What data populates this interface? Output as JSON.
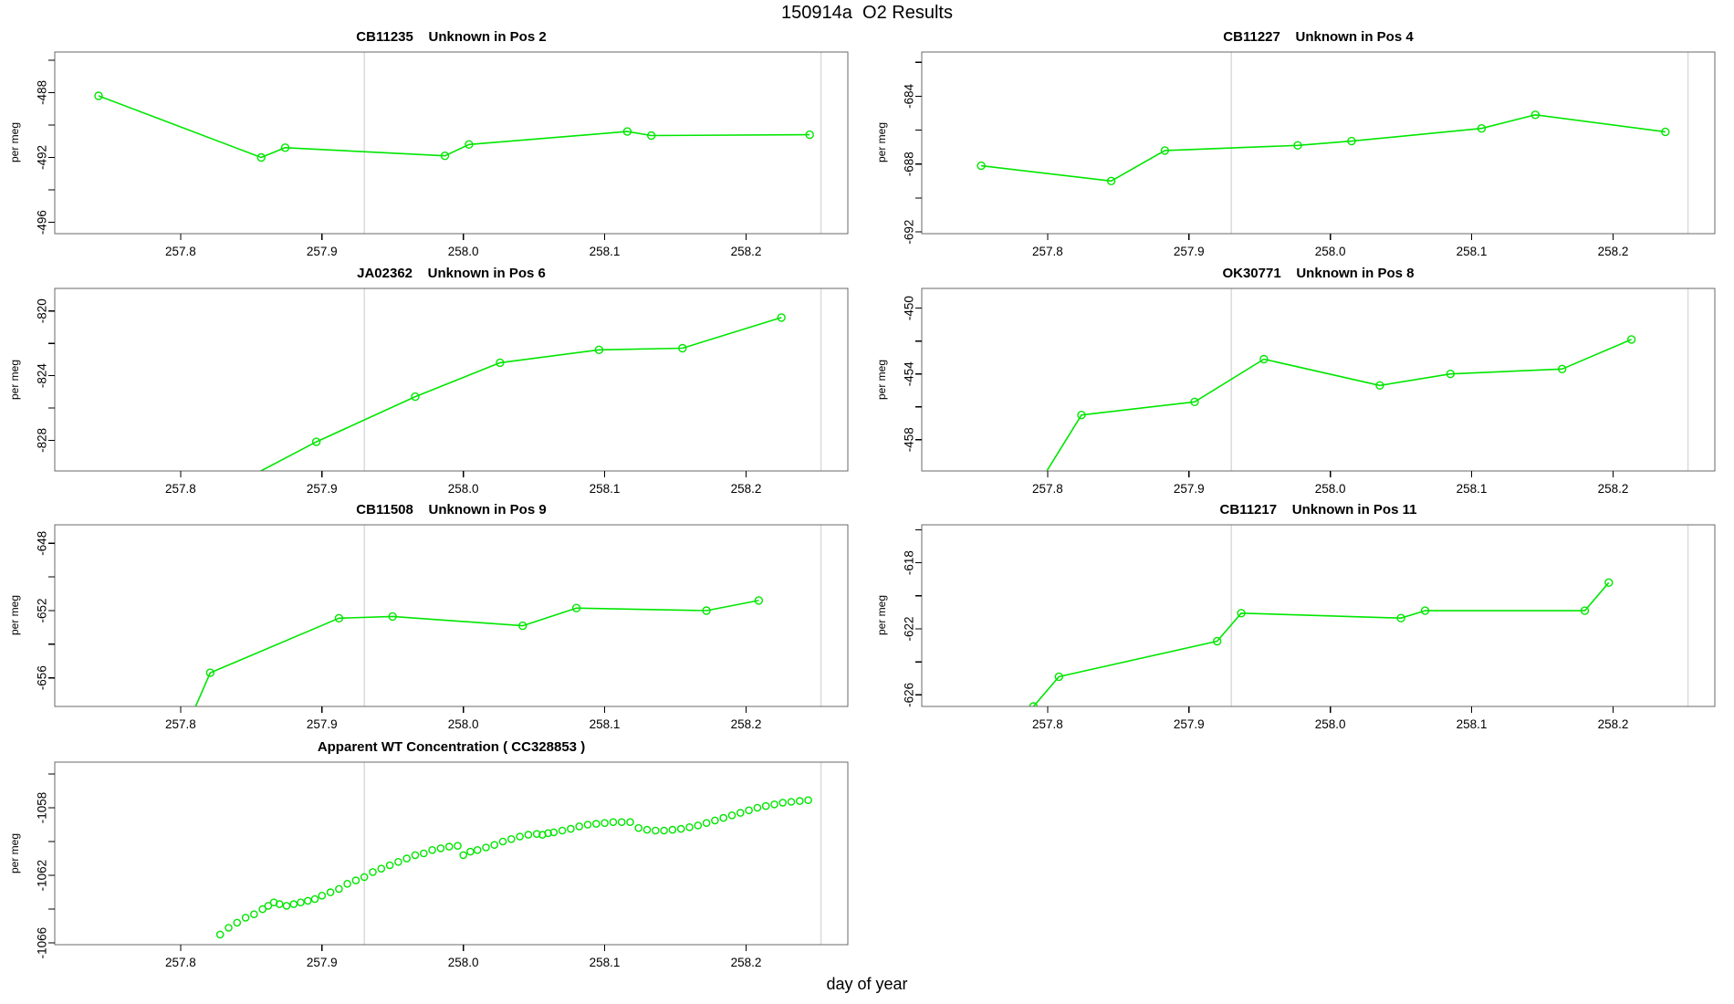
{
  "figure": {
    "title": "150914a  O2 Results",
    "xlabel": "day of year",
    "ylabel": "per meg"
  },
  "colors": {
    "series": "#00e600",
    "ref_line": "#dcdcdc",
    "frame": "#696969",
    "tick": "#000000",
    "background": "#ffffff"
  },
  "x_axis": {
    "xlim": [
      257.711,
      258.272
    ],
    "ticks": [
      257.8,
      257.9,
      258.0,
      258.1,
      258.2
    ],
    "tick_labels": [
      "257.8",
      "257.9",
      "258.0",
      "258.1",
      "258.2"
    ],
    "ref_lines": [
      257.93,
      258.253
    ]
  },
  "chart_data": [
    {
      "type": "line",
      "title": "CB11235    Unknown in Pos 2",
      "sample_id": "CB11235",
      "subtitle": "Unknown in Pos 2",
      "ylim": [
        -496.7,
        -485.5
      ],
      "yticks_minor": [
        -496,
        -494,
        -492,
        -490,
        -488,
        -486
      ],
      "yticks_labeled": [
        -496,
        -492,
        -488
      ],
      "x": [
        257.742,
        257.857,
        257.874,
        257.987,
        258.004,
        258.116,
        258.133,
        258.245
      ],
      "y": [
        -488.2,
        -492.0,
        -491.4,
        -491.9,
        -491.2,
        -490.4,
        -490.65,
        -490.6
      ]
    },
    {
      "type": "line",
      "title": "CB11227    Unknown in Pos 4",
      "sample_id": "CB11227",
      "subtitle": "Unknown in Pos 4",
      "ylim": [
        -692.1,
        -681.4
      ],
      "yticks_minor": [
        -692,
        -690,
        -688,
        -686,
        -684,
        -682
      ],
      "yticks_labeled": [
        -692,
        -688,
        -684
      ],
      "x": [
        257.753,
        257.845,
        257.883,
        257.977,
        258.015,
        258.107,
        258.145,
        258.237
      ],
      "y": [
        -688.1,
        -689.0,
        -687.2,
        -686.9,
        -686.65,
        -685.9,
        -685.1,
        -686.1
      ]
    },
    {
      "type": "line",
      "title": "JA02362    Unknown in Pos 6",
      "sample_id": "JA02362",
      "subtitle": "Unknown in Pos 6",
      "ylim": [
        -829.9,
        -818.6
      ],
      "yticks_minor": [
        -828,
        -826,
        -824,
        -822,
        -820
      ],
      "yticks_labeled": [
        -828,
        -824,
        -820
      ],
      "x": [
        257.848,
        257.896,
        257.966,
        258.026,
        258.096,
        258.155,
        258.225
      ],
      "y": [
        -830.3,
        -828.1,
        -825.3,
        -823.2,
        -822.4,
        -822.3,
        -820.4
      ]
    },
    {
      "type": "line",
      "title": "OK30771    Unknown in Pos 8",
      "sample_id": "OK30771",
      "subtitle": "Unknown in Pos 8",
      "ylim": [
        -459.9,
        -448.8
      ],
      "yticks_minor": [
        -458,
        -456,
        -454,
        -452,
        -450
      ],
      "yticks_labeled": [
        -458,
        -454,
        -450
      ],
      "x": [
        257.793,
        257.824,
        257.904,
        257.953,
        258.035,
        258.085,
        258.164,
        258.213
      ],
      "y": [
        -460.8,
        -456.5,
        -455.7,
        -453.1,
        -454.7,
        -454.0,
        -453.7,
        -451.9
      ]
    },
    {
      "type": "line",
      "title": "CB11508    Unknown in Pos 9",
      "sample_id": "CB11508",
      "subtitle": "Unknown in Pos 9",
      "ylim": [
        -657.7,
        -646.9
      ],
      "yticks_minor": [
        -656,
        -654,
        -652,
        -650,
        -648
      ],
      "yticks_labeled": [
        -656,
        -652,
        -648
      ],
      "x": [
        257.808,
        257.821,
        257.912,
        257.95,
        258.042,
        258.08,
        258.172,
        258.209
      ],
      "y": [
        -658.2,
        -655.7,
        -652.45,
        -652.35,
        -652.9,
        -651.85,
        -652.0,
        -651.4
      ]
    },
    {
      "type": "line",
      "title": "CB11217    Unknown in Pos 11",
      "sample_id": "CB11217",
      "subtitle": "Unknown in Pos 11",
      "ylim": [
        -626.7,
        -615.7
      ],
      "yticks_minor": [
        -626,
        -624,
        -622,
        -620,
        -618,
        -616
      ],
      "yticks_labeled": [
        -626,
        -622,
        -618
      ],
      "x": [
        257.79,
        257.808,
        257.92,
        257.937,
        258.05,
        258.067,
        258.18,
        258.197
      ],
      "y": [
        -626.7,
        -624.9,
        -622.75,
        -621.05,
        -621.35,
        -620.9,
        -620.9,
        -619.2
      ]
    },
    {
      "type": "scatter",
      "title": "Apparent WT Concentration ( CC328853 )",
      "sample_id": "CC328853",
      "subtitle": "Apparent WT Concentration",
      "ylim": [
        -1066.1,
        -1055.3
      ],
      "yticks_minor": [
        -1066,
        -1064,
        -1062,
        -1060,
        -1058,
        -1056
      ],
      "yticks_labeled": [
        -1066,
        -1062,
        -1058
      ],
      "x": [
        257.828,
        257.834,
        257.84,
        257.846,
        257.852,
        257.858,
        257.862,
        257.866,
        257.87,
        257.875,
        257.88,
        257.885,
        257.89,
        257.895,
        257.9,
        257.906,
        257.912,
        257.918,
        257.924,
        257.93,
        257.936,
        257.942,
        257.948,
        257.954,
        257.96,
        257.966,
        257.972,
        257.978,
        257.984,
        257.99,
        257.996,
        258.0,
        258.005,
        258.01,
        258.016,
        258.022,
        258.028,
        258.034,
        258.04,
        258.046,
        258.052,
        258.056,
        258.06,
        258.064,
        258.07,
        258.076,
        258.082,
        258.088,
        258.094,
        258.1,
        258.106,
        258.112,
        258.118,
        258.124,
        258.13,
        258.136,
        258.142,
        258.148,
        258.154,
        258.16,
        258.166,
        258.172,
        258.178,
        258.184,
        258.19,
        258.196,
        258.202,
        258.208,
        258.214,
        258.22,
        258.226,
        258.232,
        258.238,
        258.244
      ],
      "y": [
        -1065.5,
        -1065.1,
        -1064.8,
        -1064.5,
        -1064.3,
        -1064.0,
        -1063.8,
        -1063.6,
        -1063.7,
        -1063.8,
        -1063.7,
        -1063.6,
        -1063.5,
        -1063.4,
        -1063.2,
        -1063.0,
        -1062.8,
        -1062.5,
        -1062.3,
        -1062.1,
        -1061.8,
        -1061.6,
        -1061.4,
        -1061.2,
        -1061.0,
        -1060.8,
        -1060.7,
        -1060.5,
        -1060.4,
        -1060.3,
        -1060.25,
        -1060.8,
        -1060.6,
        -1060.5,
        -1060.35,
        -1060.2,
        -1060.0,
        -1059.85,
        -1059.7,
        -1059.6,
        -1059.55,
        -1059.6,
        -1059.5,
        -1059.45,
        -1059.35,
        -1059.25,
        -1059.1,
        -1059.0,
        -1058.95,
        -1058.9,
        -1058.85,
        -1058.85,
        -1058.85,
        -1059.2,
        -1059.3,
        -1059.35,
        -1059.35,
        -1059.3,
        -1059.25,
        -1059.15,
        -1059.05,
        -1058.9,
        -1058.75,
        -1058.6,
        -1058.45,
        -1058.3,
        -1058.15,
        -1058.0,
        -1057.9,
        -1057.8,
        -1057.7,
        -1057.65,
        -1057.6,
        -1057.55
      ]
    }
  ]
}
